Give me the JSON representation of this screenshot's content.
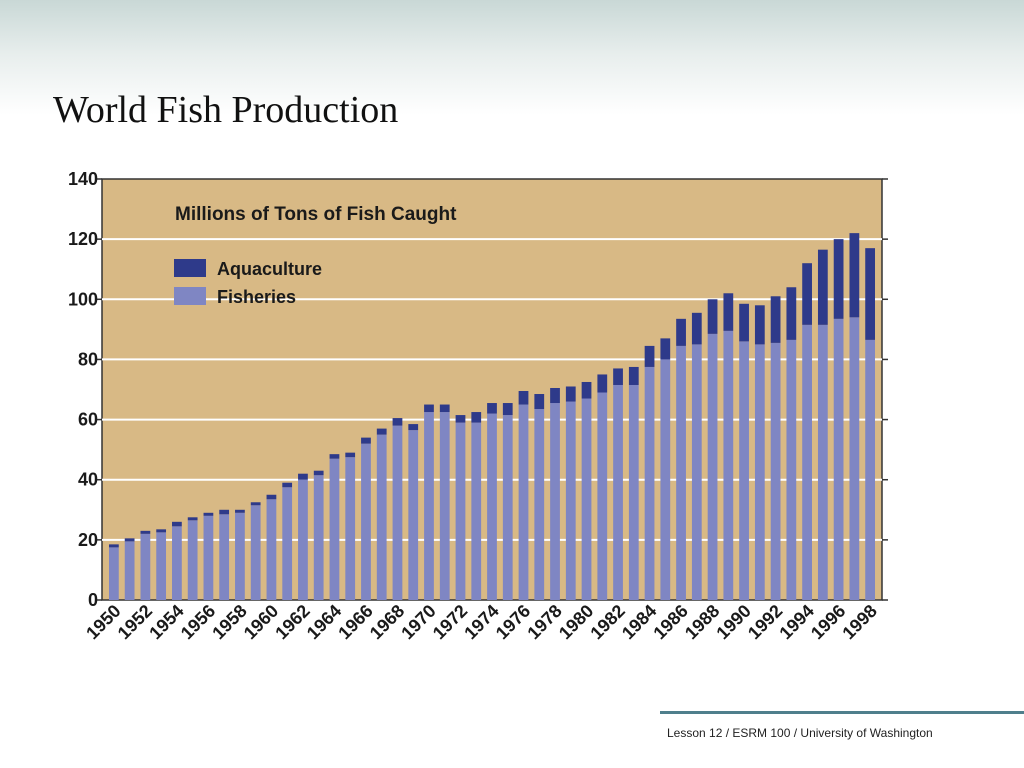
{
  "slide": {
    "title": "World Fish Production",
    "footer": "Lesson 12  / ESRM 100 / University of Washington"
  },
  "colors": {
    "plot_background": "#d8b985",
    "fisheries": "#7f86c3",
    "aquaculture": "#2e3a8a",
    "gridline": "#ffffff",
    "footer_rule": "#4f7f8c"
  },
  "chart_data": {
    "type": "bar",
    "stacked": true,
    "title": "Millions of Tons of Fish Caught",
    "xlabel": "",
    "ylabel": "",
    "ylim": [
      0,
      140
    ],
    "yticks": [
      0,
      20,
      40,
      60,
      80,
      100,
      120,
      140
    ],
    "xtick_labels": [
      "1950",
      "1952",
      "1954",
      "1956",
      "1958",
      "1960",
      "1962",
      "1964",
      "1966",
      "1968",
      "1970",
      "1972",
      "1974",
      "1976",
      "1978",
      "1980",
      "1982",
      "1984",
      "1986",
      "1988",
      "1990",
      "1992",
      "1994",
      "1996",
      "1998"
    ],
    "grid": true,
    "legend": "top-left",
    "categories": [
      "1950",
      "1951",
      "1952",
      "1953",
      "1954",
      "1955",
      "1956",
      "1957",
      "1958",
      "1959",
      "1960",
      "1961",
      "1962",
      "1963",
      "1964",
      "1965",
      "1966",
      "1967",
      "1968",
      "1969",
      "1970",
      "1971",
      "1972",
      "1973",
      "1974",
      "1975",
      "1976",
      "1977",
      "1978",
      "1979",
      "1980",
      "1981",
      "1982",
      "1983",
      "1984",
      "1985",
      "1986",
      "1987",
      "1988",
      "1989",
      "1990",
      "1991",
      "1992",
      "1993",
      "1994",
      "1995",
      "1996",
      "1997",
      "1998"
    ],
    "series": [
      {
        "name": "Fisheries",
        "values": [
          17.5,
          19.5,
          22.0,
          22.5,
          24.5,
          26.5,
          28.0,
          28.5,
          29.0,
          31.5,
          33.5,
          37.5,
          40.0,
          41.5,
          47.0,
          47.5,
          52.0,
          55.0,
          58.0,
          56.5,
          62.5,
          62.5,
          59.0,
          59.0,
          62.0,
          61.5,
          65.0,
          63.5,
          65.5,
          66.0,
          67.0,
          69.0,
          71.5,
          71.5,
          77.5,
          80.0,
          84.5,
          85.0,
          88.5,
          89.5,
          86.0,
          85.0,
          85.5,
          86.5,
          91.5,
          91.5,
          93.5,
          94.0,
          86.5
        ]
      },
      {
        "name": "Aquaculture",
        "values": [
          1.0,
          1.0,
          1.0,
          1.0,
          1.5,
          1.0,
          1.0,
          1.5,
          1.0,
          1.0,
          1.5,
          1.5,
          2.0,
          1.5,
          1.5,
          1.5,
          2.0,
          2.0,
          2.5,
          2.0,
          2.5,
          2.5,
          2.5,
          3.5,
          3.5,
          4.0,
          4.5,
          5.0,
          5.0,
          5.0,
          5.5,
          6.0,
          5.5,
          6.0,
          7.0,
          7.0,
          9.0,
          10.5,
          11.5,
          12.5,
          12.5,
          13.0,
          15.5,
          17.5,
          20.5,
          25.0,
          26.5,
          28.0,
          30.5
        ]
      }
    ]
  }
}
